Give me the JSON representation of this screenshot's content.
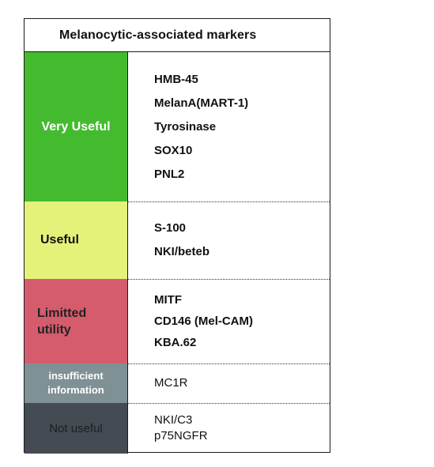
{
  "title": "Melanocytic-associated markers",
  "rows": [
    {
      "category": "Very Useful",
      "markers": [
        "HMB-45",
        "MelanA(MART-1)",
        "Tyrosinase",
        "SOX10",
        "PNL2"
      ]
    },
    {
      "category": "Useful",
      "markers": [
        "S-100",
        "NKI/beteb"
      ]
    },
    {
      "category": "Limitted\nutility",
      "markers": [
        "MITF",
        "CD146 (Mel-CAM)",
        "KBA.62"
      ]
    },
    {
      "category": "insufficient\ninformation",
      "markers": [
        "MC1R"
      ]
    },
    {
      "category": "Not useful",
      "markers": [
        "NKI/C3",
        "p75NGFR"
      ]
    }
  ],
  "colors": {
    "very_useful": "#44bb2f",
    "useful": "#e5f27a",
    "limited_utility": "#d45c6c",
    "insufficient_information": "#7f9195",
    "not_useful": "#444b52"
  }
}
